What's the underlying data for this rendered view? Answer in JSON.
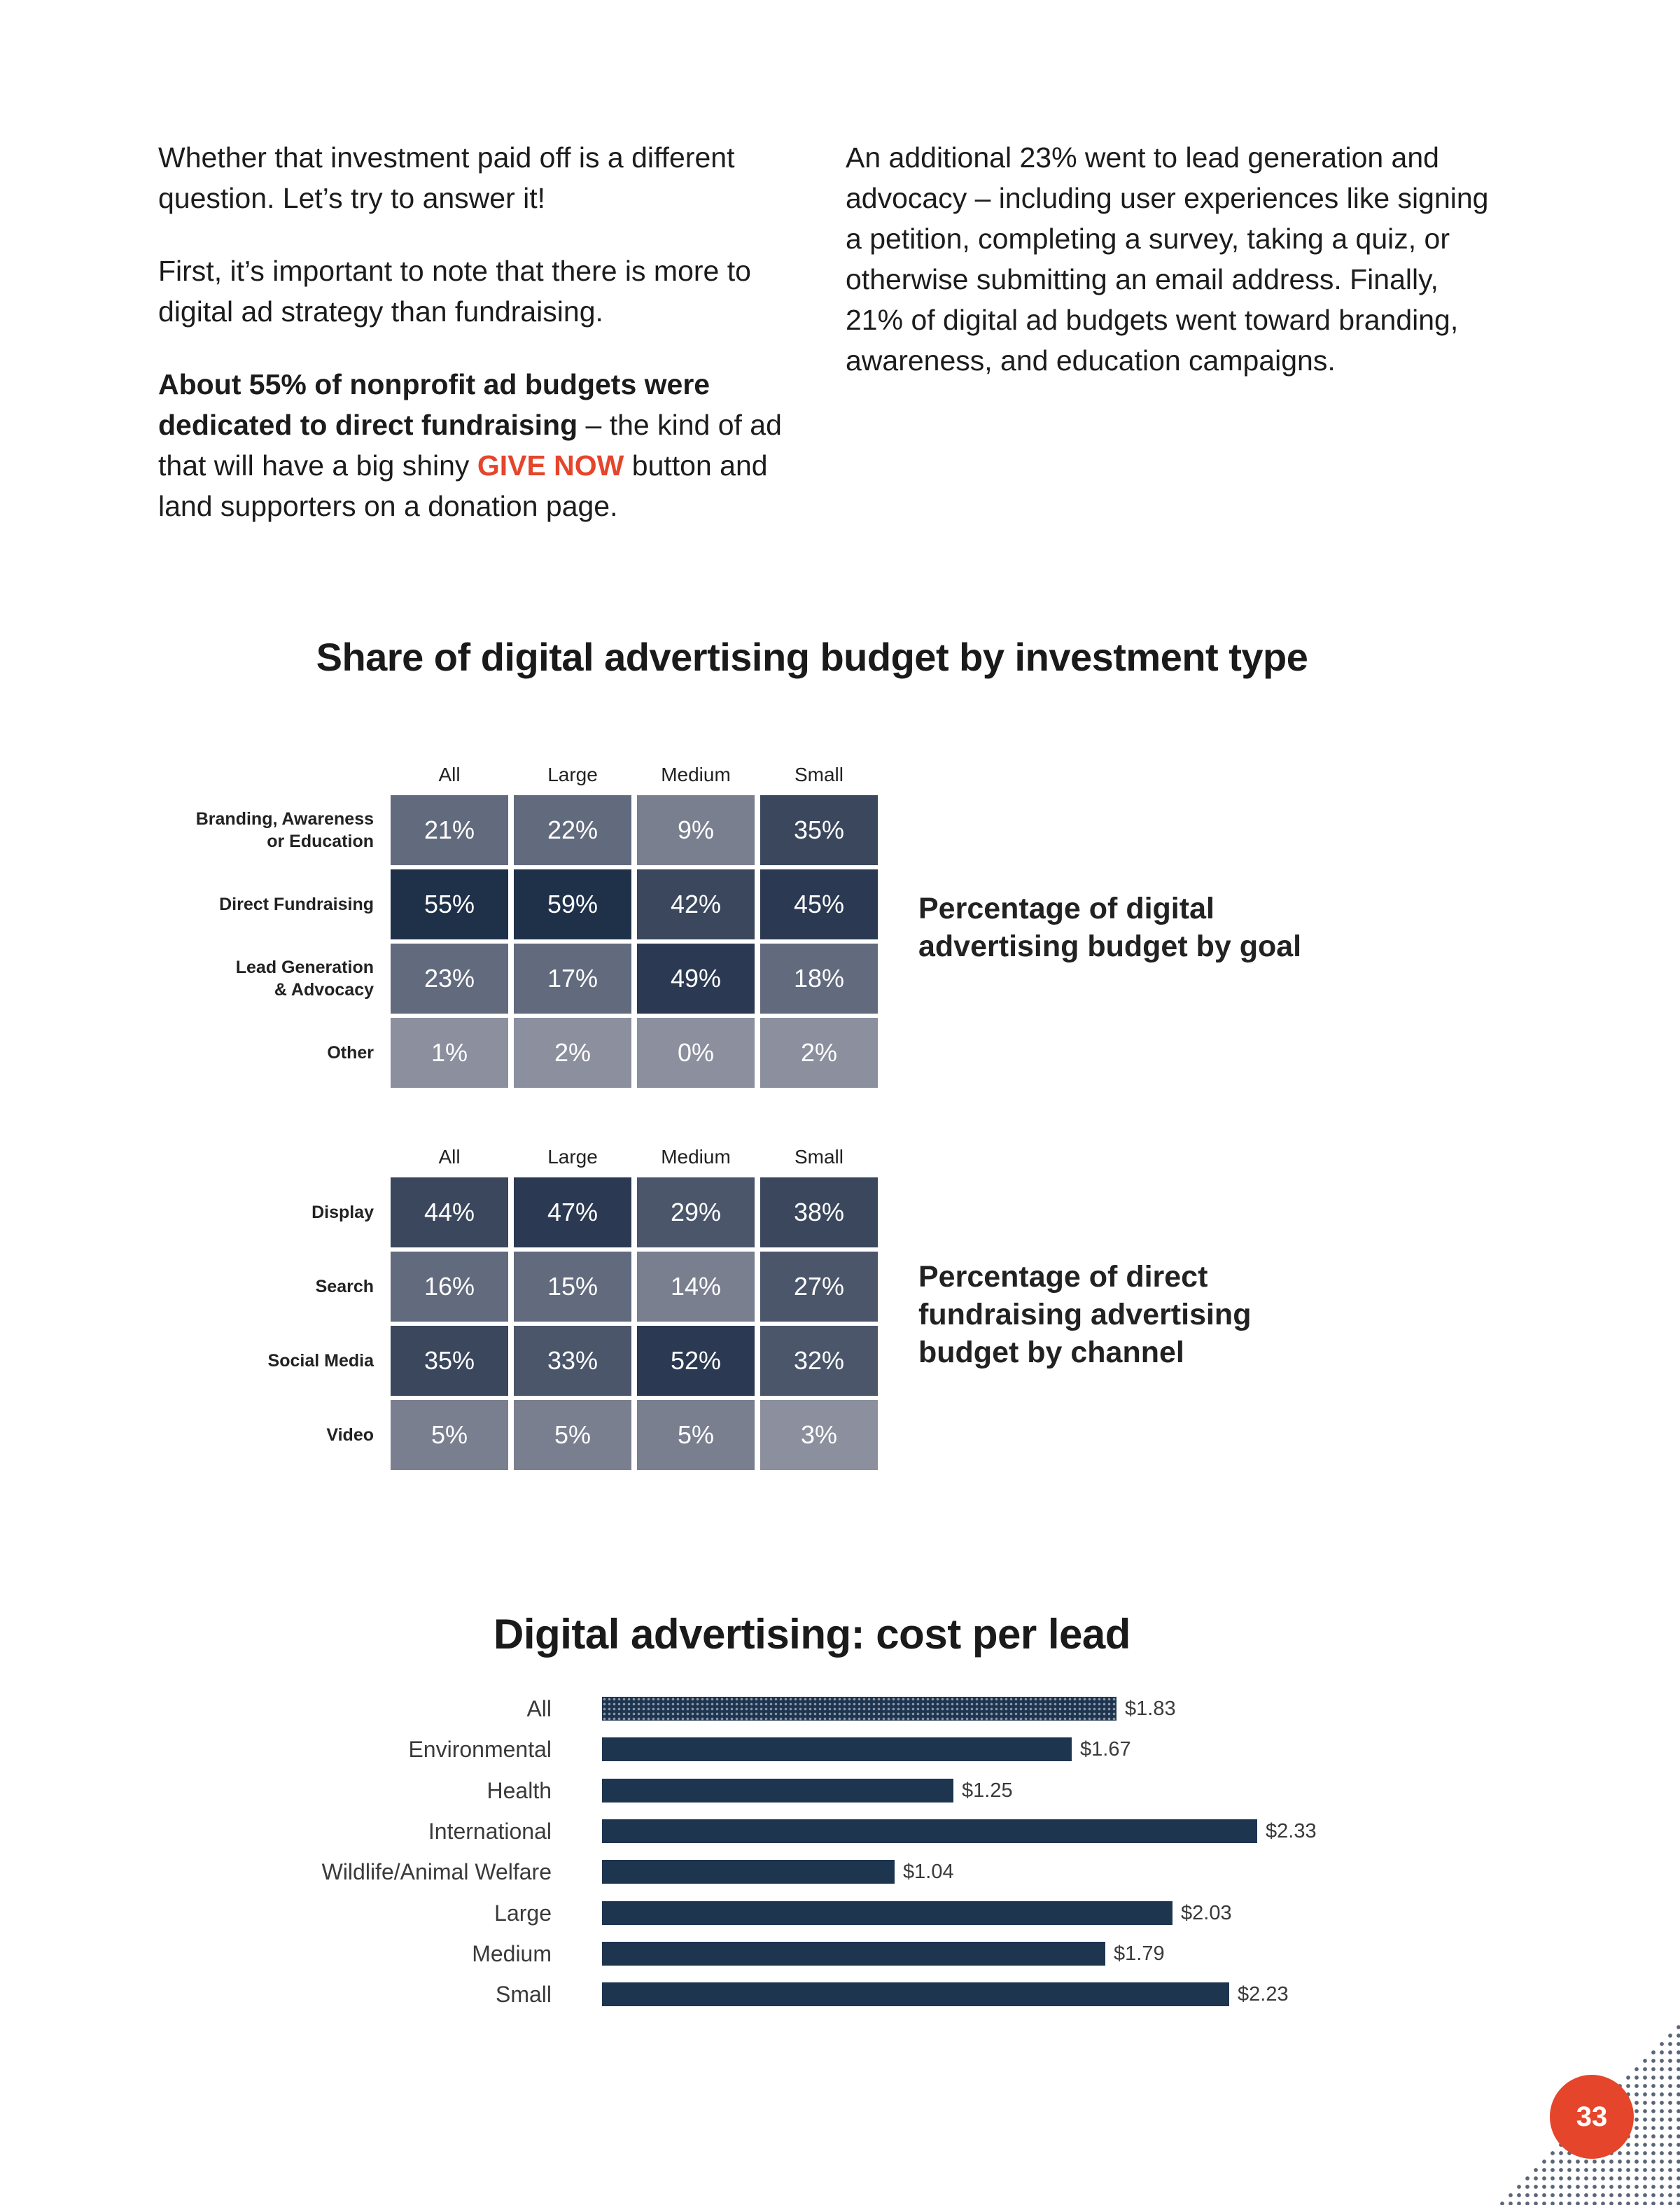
{
  "text": {
    "left": {
      "p1": "Whether that investment paid off is a different question. Let’s try to answer it!",
      "p2": "First, it’s important to note that there is more to digital ad strategy than fundraising.",
      "p3_bold": "About 55% of nonprofit ad budgets were dedicated to direct fundraising",
      "p3_mid": " – the kind of ad that will have a big shiny ",
      "p3_highlight": "GIVE NOW",
      "p3_end": " but­ton and land supporters on a donation page."
    },
    "right": {
      "p1": "An additional 23% went to lead generation and advocacy – including user experiences like signing a petition, completing a survey, taking a quiz, or otherwise submitting an email address. Finally, 21% of digital ad bud­gets went toward branding, awareness, and education campaigns."
    }
  },
  "heatmap_title": "Share of digital advertising budget by investment type",
  "bar_title": "Digital advertising: cost per lead",
  "page_number": "33",
  "colors": {
    "accent": "#e5452b",
    "bar": "#1e3550",
    "scale": [
      "#8b8f9e",
      "#7a7f90",
      "#626a7e",
      "#4b566b",
      "#3a475d",
      "#2b3a52",
      "#1f3049"
    ]
  },
  "chart_data": [
    {
      "type": "heatmap",
      "title": "Percentage of digital advertising budget by goal",
      "columns": [
        "All",
        "Large",
        "Medium",
        "Small"
      ],
      "rows": [
        "Branding, Awareness or Education",
        "Direct Fundraising",
        "Lead Generation & Advocacy",
        "Other"
      ],
      "row_label_lines": [
        [
          "Branding, Awareness",
          "or Education"
        ],
        [
          "Direct Fundraising"
        ],
        [
          "Lead Generation",
          "& Advocacy"
        ],
        [
          "Other"
        ]
      ],
      "values": [
        [
          21,
          22,
          9,
          35
        ],
        [
          55,
          59,
          42,
          45
        ],
        [
          23,
          17,
          49,
          18
        ],
        [
          1,
          2,
          0,
          2
        ]
      ],
      "labels": [
        [
          "21%",
          "22%",
          "9%",
          "35%"
        ],
        [
          "55%",
          "59%",
          "42%",
          "45%"
        ],
        [
          "23%",
          "17%",
          "49%",
          "18%"
        ],
        [
          "1%",
          "2%",
          "0%",
          "2%"
        ]
      ]
    },
    {
      "type": "heatmap",
      "title": "Percentage of direct fundraising advertising budget by channel",
      "columns": [
        "All",
        "Large",
        "Medium",
        "Small"
      ],
      "rows": [
        "Display",
        "Search",
        "Social Media",
        "Video"
      ],
      "row_label_lines": [
        [
          "Display"
        ],
        [
          "Search"
        ],
        [
          "Social Media"
        ],
        [
          "Video"
        ]
      ],
      "values": [
        [
          44,
          47,
          29,
          38
        ],
        [
          16,
          15,
          14,
          27
        ],
        [
          35,
          33,
          52,
          32
        ],
        [
          5,
          5,
          5,
          3
        ]
      ],
      "labels": [
        [
          "44%",
          "47%",
          "29%",
          "38%"
        ],
        [
          "16%",
          "15%",
          "14%",
          "27%"
        ],
        [
          "35%",
          "33%",
          "52%",
          "32%"
        ],
        [
          "5%",
          "5%",
          "5%",
          "3%"
        ]
      ]
    },
    {
      "type": "bar",
      "orientation": "horizontal",
      "title": "Digital advertising: cost per lead",
      "categories": [
        "All",
        "Environmental",
        "Health",
        "International",
        "Wildlife/Animal Welfare",
        "Large",
        "Medium",
        "Small"
      ],
      "values": [
        1.83,
        1.67,
        1.25,
        2.33,
        1.04,
        2.03,
        1.79,
        2.23
      ],
      "value_labels": [
        "$1.83",
        "$1.67",
        "$1.25",
        "$2.33",
        "$1.04",
        "$2.03",
        "$1.79",
        "$2.23"
      ],
      "highlight_index": 0,
      "xlim": [
        0,
        2.33
      ]
    }
  ]
}
